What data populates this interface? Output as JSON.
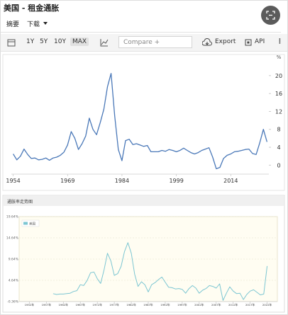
{
  "header": {
    "title": "美国 - 租金通胀"
  },
  "tabs": [
    "摘要",
    "下载"
  ],
  "toolbar": {
    "ranges": [
      "1Y",
      "5Y",
      "10Y",
      "MAX"
    ],
    "active_range": 3,
    "compare": "Compare +",
    "export": "Export",
    "api": "API"
  },
  "chart_data": [
    {
      "type": "line",
      "y_unit": "%",
      "color": "#4a78b8",
      "x": [
        1954,
        1955,
        1956,
        1957,
        1958,
        1959,
        1960,
        1961,
        1962,
        1963,
        1964,
        1965,
        1966,
        1967,
        1968,
        1969,
        1970,
        1971,
        1972,
        1973,
        1974,
        1975,
        1976,
        1977,
        1978,
        1979,
        1980,
        1981,
        1982,
        1983,
        1984,
        1985,
        1986,
        1987,
        1988,
        1989,
        1990,
        1991,
        1992,
        1993,
        1994,
        1995,
        1996,
        1997,
        1998,
        1999,
        2000,
        2001,
        2002,
        2003,
        2004,
        2005,
        2006,
        2007,
        2008,
        2009,
        2010,
        2011,
        2012,
        2013,
        2014,
        2015,
        2016,
        2017,
        2018,
        2019,
        2020,
        2021,
        2022,
        2023,
        2024
      ],
      "values": [
        2.5,
        1.2,
        2.0,
        3.6,
        2.4,
        1.5,
        1.6,
        1.2,
        1.3,
        1.6,
        1.1,
        1.6,
        1.8,
        2.2,
        2.9,
        4.5,
        7.5,
        6.0,
        3.5,
        4.8,
        6.5,
        10.5,
        8.0,
        6.8,
        9.5,
        12.5,
        17.5,
        20.5,
        11.0,
        3.5,
        1.0,
        5.5,
        5.8,
        4.6,
        4.8,
        4.5,
        4.2,
        4.4,
        3.0,
        3.0,
        3.0,
        3.3,
        3.1,
        3.5,
        3.3,
        3.0,
        3.3,
        3.8,
        3.3,
        2.8,
        2.5,
        2.8,
        3.3,
        3.6,
        3.9,
        1.8,
        -0.8,
        -0.5,
        1.5,
        2.2,
        2.5,
        3.0,
        3.1,
        3.3,
        3.5,
        3.6,
        2.6,
        2.4,
        5.0,
        8.0,
        5.2
      ],
      "xlim": [
        1953.5,
        2024.5
      ],
      "xticks": [
        1954,
        1969,
        1984,
        1999,
        2014
      ],
      "ylim": [
        -2,
        22.5
      ],
      "yticks": [
        0,
        4,
        8,
        12,
        16,
        20
      ]
    },
    {
      "type": "line",
      "title": "通胀率走势图",
      "color": "#7cc6d2",
      "background": "#fffdf2",
      "grid": true,
      "series": [
        {
          "name": "美国",
          "color": "#7cc6d2",
          "x": [
            1959,
            1960,
            1961,
            1962,
            1963,
            1964,
            1965,
            1966,
            1967,
            1968,
            1969,
            1970,
            1971,
            1972,
            1973,
            1974,
            1975,
            1976,
            1977,
            1978,
            1979,
            1980,
            1981,
            1982,
            1983,
            1984,
            1985,
            1986,
            1987,
            1988,
            1989,
            1990,
            1991,
            1992,
            1993,
            1994,
            1995,
            1996,
            1997,
            1998,
            1999,
            2000,
            2001,
            2002,
            2003,
            2004,
            2005,
            2006,
            2007,
            2008,
            2009,
            2010,
            2011,
            2012,
            2013,
            2014,
            2015,
            2016,
            2017,
            2018,
            2019,
            2020,
            2021,
            2022
          ],
          "values": [
            1.5,
            1.3,
            1.4,
            1.4,
            1.5,
            1.6,
            2.0,
            2.2,
            3.6,
            3.4,
            4.6,
            6.4,
            6.6,
            5.0,
            3.9,
            7.1,
            11.0,
            9.2,
            5.8,
            6.2,
            7.9,
            11.4,
            13.5,
            11.0,
            6.1,
            3.2,
            4.3,
            3.6,
            1.9,
            3.6,
            4.1,
            4.8,
            5.4,
            4.2,
            3.0,
            2.9,
            2.6,
            2.7,
            2.5,
            1.6,
            2.7,
            3.4,
            2.8,
            1.6,
            2.3,
            2.7,
            3.4,
            3.2,
            2.8,
            3.8,
            -0.1,
            1.6,
            3.1,
            2.1,
            1.5,
            1.6,
            0.1,
            1.3,
            2.1,
            2.4,
            1.8,
            1.2,
            1.4,
            8.0
          ]
        }
      ],
      "xlim": [
        1949,
        2025
      ],
      "xticks": [
        {
          "value": 1952,
          "label": "1952年"
        },
        {
          "value": 1957,
          "label": "1957年"
        },
        {
          "value": 1962,
          "label": "1962年"
        },
        {
          "value": 1967,
          "label": "1967年"
        },
        {
          "value": 1972,
          "label": "1972年"
        },
        {
          "value": 1977,
          "label": "1977年"
        },
        {
          "value": 1982,
          "label": "1982年"
        },
        {
          "value": 1987,
          "label": "1987年"
        },
        {
          "value": 1992,
          "label": "1992年"
        },
        {
          "value": 1997,
          "label": "1997年"
        },
        {
          "value": 2002,
          "label": "2002年"
        },
        {
          "value": 2007,
          "label": "2007年"
        },
        {
          "value": 2012,
          "label": "2012年"
        },
        {
          "value": 2017,
          "label": "2017年"
        },
        {
          "value": 2022,
          "label": "2022年"
        }
      ],
      "ylim": [
        -0.36,
        19.64
      ],
      "yticks": [
        {
          "value": -0.36,
          "label": "-0.36%"
        },
        {
          "value": 4.64,
          "label": "4.64%"
        },
        {
          "value": 9.64,
          "label": "9.64%"
        },
        {
          "value": 14.64,
          "label": "14.64%"
        },
        {
          "value": 19.64,
          "label": "19.64%"
        }
      ]
    }
  ]
}
